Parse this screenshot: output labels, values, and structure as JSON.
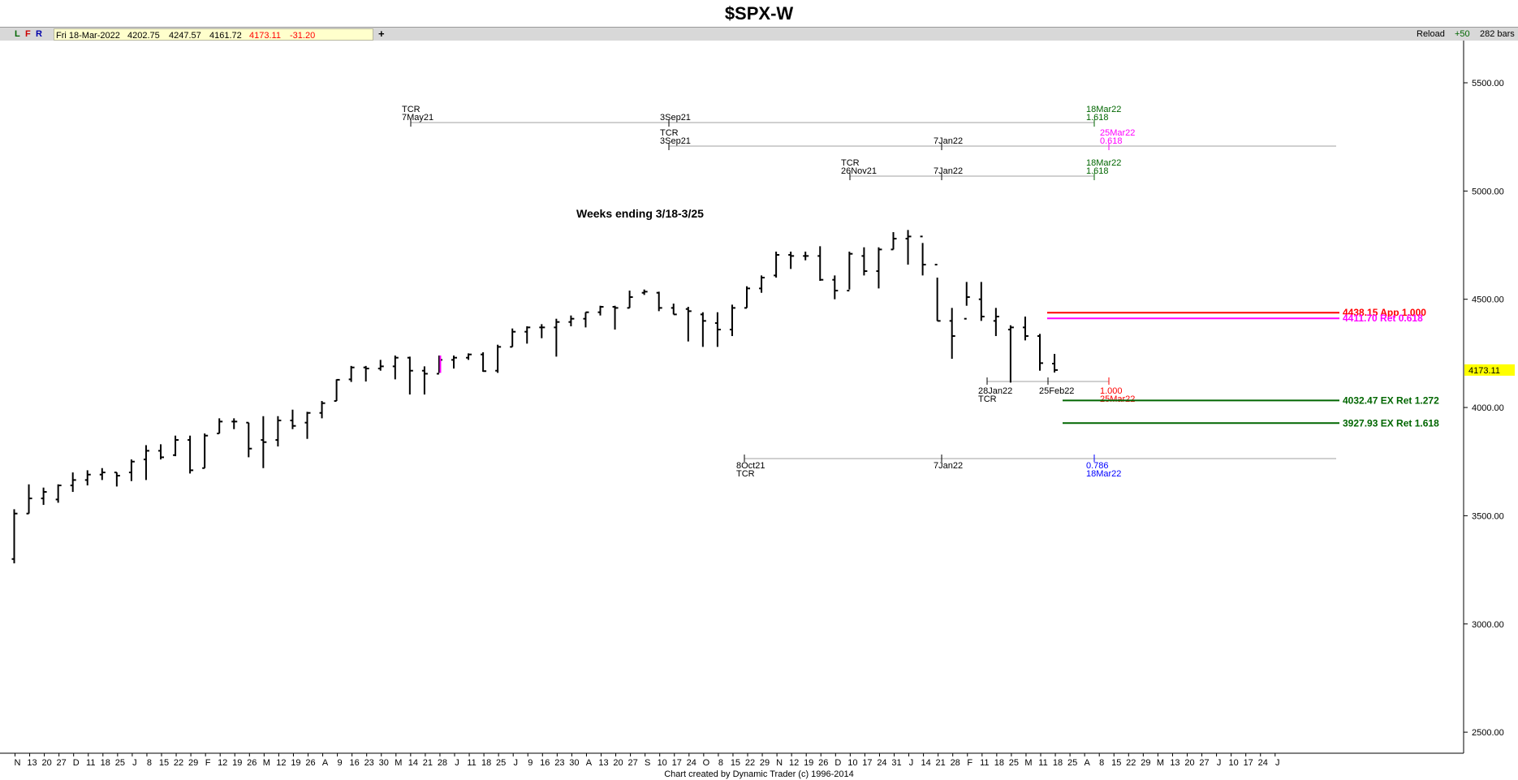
{
  "title": "$SPX-W",
  "toolbar": {
    "btn_l": "L",
    "btn_f": "F",
    "btn_r": "R",
    "date": "Fri 18-Mar-2022",
    "open": "4202.75",
    "high": "4247.57",
    "low": "4161.72",
    "close": "4173.11",
    "change": "-31.20",
    "add_label": "+",
    "reload_label": "Reload",
    "plus50": "+50",
    "bars": "282 bars"
  },
  "footer": "Chart created by Dynamic Trader  (c) 1996-2014",
  "colors": {
    "red": "#ff0000",
    "magenta": "#ff00ff",
    "green": "#006600",
    "blue": "#0000ff",
    "price_tag": "#ffff00"
  },
  "chart_data": {
    "type": "bar",
    "title": "$SPX-W",
    "ylim": [
      2450,
      5720
    ],
    "yticks": [
      "5500.00",
      "5000.00",
      "4500.00",
      "4000.00",
      "3500.00",
      "3000.00",
      "2500.00"
    ],
    "xtick_labels": [
      "N",
      "13",
      "20",
      "27",
      "D",
      "11",
      "18",
      "25",
      "J",
      "8",
      "15",
      "22",
      "29",
      "F",
      "12",
      "19",
      "26",
      "M",
      "12",
      "19",
      "26",
      "A",
      "9",
      "16",
      "23",
      "30",
      "M",
      "14",
      "21",
      "28",
      "J",
      "11",
      "18",
      "25",
      "J",
      "9",
      "16",
      "23",
      "30",
      "A",
      "13",
      "20",
      "27",
      "S",
      "10",
      "17",
      "24",
      "O",
      "8",
      "15",
      "22",
      "29",
      "N",
      "12",
      "19",
      "26",
      "D",
      "10",
      "17",
      "24",
      "31",
      "J",
      "14",
      "21",
      "28",
      "F",
      "11",
      "18",
      "25",
      "M",
      "11",
      "18",
      "25",
      "A",
      "8",
      "15",
      "22",
      "29",
      "M",
      "13",
      "20",
      "27",
      "J",
      "10",
      "17",
      "24",
      "J"
    ],
    "last_price": "4173.11",
    "weekly_bars": [
      {
        "o": 3300,
        "h": 3530,
        "l": 3280,
        "c": 3510
      },
      {
        "o": 3510,
        "h": 3645,
        "l": 3510,
        "c": 3580
      },
      {
        "o": 3580,
        "h": 3630,
        "l": 3550,
        "c": 3610
      },
      {
        "o": 3575,
        "h": 3645,
        "l": 3560,
        "c": 3640
      },
      {
        "o": 3640,
        "h": 3700,
        "l": 3610,
        "c": 3665
      },
      {
        "o": 3665,
        "h": 3710,
        "l": 3640,
        "c": 3690
      },
      {
        "o": 3690,
        "h": 3720,
        "l": 3665,
        "c": 3700
      },
      {
        "o": 3700,
        "h": 3700,
        "l": 3635,
        "c": 3685
      },
      {
        "o": 3700,
        "h": 3760,
        "l": 3660,
        "c": 3750
      },
      {
        "o": 3760,
        "h": 3826,
        "l": 3665,
        "c": 3800
      },
      {
        "o": 3800,
        "h": 3830,
        "l": 3760,
        "c": 3770
      },
      {
        "o": 3780,
        "h": 3870,
        "l": 3775,
        "c": 3850
      },
      {
        "o": 3850,
        "h": 3870,
        "l": 3695,
        "c": 3710
      },
      {
        "o": 3720,
        "h": 3880,
        "l": 3720,
        "c": 3870
      },
      {
        "o": 3880,
        "h": 3950,
        "l": 3880,
        "c": 3935
      },
      {
        "o": 3935,
        "h": 3950,
        "l": 3900,
        "c": 3935
      },
      {
        "o": 3930,
        "h": 3930,
        "l": 3770,
        "c": 3810
      },
      {
        "o": 3850,
        "h": 3960,
        "l": 3720,
        "c": 3840
      },
      {
        "o": 3850,
        "h": 3960,
        "l": 3820,
        "c": 3940
      },
      {
        "o": 3940,
        "h": 3990,
        "l": 3900,
        "c": 3915
      },
      {
        "o": 3930,
        "h": 3980,
        "l": 3855,
        "c": 3975
      },
      {
        "o": 3975,
        "h": 4030,
        "l": 3950,
        "c": 4020
      },
      {
        "o": 4030,
        "h": 4130,
        "l": 4030,
        "c": 4128
      },
      {
        "o": 4130,
        "h": 4192,
        "l": 4118,
        "c": 4185
      },
      {
        "o": 4185,
        "h": 4192,
        "l": 4120,
        "c": 4180
      },
      {
        "o": 4180,
        "h": 4220,
        "l": 4170,
        "c": 4190
      },
      {
        "o": 4190,
        "h": 4240,
        "l": 4130,
        "c": 4230
      },
      {
        "o": 4230,
        "h": 4235,
        "l": 4060,
        "c": 4170
      },
      {
        "o": 4170,
        "h": 4190,
        "l": 4060,
        "c": 4156
      },
      {
        "o": 4156,
        "h": 4240,
        "l": 4160,
        "c": 4220
      },
      {
        "o": 4220,
        "h": 4240,
        "l": 4180,
        "c": 4230
      },
      {
        "o": 4230,
        "h": 4250,
        "l": 4220,
        "c": 4245
      },
      {
        "o": 4245,
        "h": 4255,
        "l": 4165,
        "c": 4168
      },
      {
        "o": 4170,
        "h": 4290,
        "l": 4160,
        "c": 4280
      },
      {
        "o": 4280,
        "h": 4365,
        "l": 4280,
        "c": 4350
      },
      {
        "o": 4350,
        "h": 4375,
        "l": 4295,
        "c": 4370
      },
      {
        "o": 4370,
        "h": 4385,
        "l": 4320,
        "c": 4370
      },
      {
        "o": 4370,
        "h": 4410,
        "l": 4235,
        "c": 4395
      },
      {
        "o": 4395,
        "h": 4425,
        "l": 4375,
        "c": 4410
      },
      {
        "o": 4410,
        "h": 4440,
        "l": 4370,
        "c": 4440
      },
      {
        "o": 4440,
        "h": 4470,
        "l": 4425,
        "c": 4465
      },
      {
        "o": 4465,
        "h": 4470,
        "l": 4360,
        "c": 4460
      },
      {
        "o": 4460,
        "h": 4540,
        "l": 4460,
        "c": 4510
      },
      {
        "o": 4530,
        "h": 4545,
        "l": 4520,
        "c": 4535
      },
      {
        "o": 4530,
        "h": 4535,
        "l": 4445,
        "c": 4460
      },
      {
        "o": 4460,
        "h": 4480,
        "l": 4430,
        "c": 4430
      },
      {
        "o": 4455,
        "h": 4465,
        "l": 4305,
        "c": 4445
      },
      {
        "o": 4430,
        "h": 4440,
        "l": 4280,
        "c": 4400
      },
      {
        "o": 4390,
        "h": 4440,
        "l": 4280,
        "c": 4360
      },
      {
        "o": 4360,
        "h": 4475,
        "l": 4330,
        "c": 4460
      },
      {
        "o": 4460,
        "h": 4560,
        "l": 4460,
        "c": 4550
      },
      {
        "o": 4550,
        "h": 4610,
        "l": 4530,
        "c": 4600
      },
      {
        "o": 4610,
        "h": 4720,
        "l": 4600,
        "c": 4705
      },
      {
        "o": 4705,
        "h": 4720,
        "l": 4640,
        "c": 4700
      },
      {
        "o": 4700,
        "h": 4720,
        "l": 4680,
        "c": 4700
      },
      {
        "o": 4700,
        "h": 4745,
        "l": 4585,
        "c": 4590
      },
      {
        "o": 4590,
        "h": 4610,
        "l": 4500,
        "c": 4540
      },
      {
        "o": 4540,
        "h": 4720,
        "l": 4545,
        "c": 4710
      },
      {
        "o": 4700,
        "h": 4740,
        "l": 4610,
        "c": 4630
      },
      {
        "o": 4630,
        "h": 4740,
        "l": 4550,
        "c": 4730
      },
      {
        "o": 4730,
        "h": 4810,
        "l": 4730,
        "c": 4780
      },
      {
        "o": 4780,
        "h": 4820,
        "l": 4660,
        "c": 4790
      },
      {
        "o": 4790,
        "h": 4760,
        "l": 4610,
        "c": 4660
      },
      {
        "o": 4660,
        "h": 4600,
        "l": 4400,
        "c": 4400
      },
      {
        "o": 4400,
        "h": 4460,
        "l": 4225,
        "c": 4330
      },
      {
        "o": 4410,
        "h": 4580,
        "l": 4470,
        "c": 4510
      },
      {
        "o": 4500,
        "h": 4580,
        "l": 4400,
        "c": 4420
      },
      {
        "o": 4400,
        "h": 4460,
        "l": 4330,
        "c": 4420
      },
      {
        "o": 4360,
        "h": 4380,
        "l": 4115,
        "c": 4370
      },
      {
        "o": 4370,
        "h": 4420,
        "l": 4310,
        "c": 4330
      },
      {
        "o": 4330,
        "h": 4340,
        "l": 4170,
        "c": 4205
      },
      {
        "o": 4202.75,
        "h": 4247.57,
        "l": 4161.72,
        "c": 4173.11
      }
    ],
    "level_lines": [
      {
        "value": 4438.15,
        "label": "4438.15 App 1.000",
        "color": "red"
      },
      {
        "value": 4411.7,
        "label": "4411.70 Ret 0.618",
        "color": "magenta"
      },
      {
        "value": 4032.47,
        "label": "4032.47 EX Ret 1.272",
        "color": "green"
      },
      {
        "value": 3927.93,
        "label": "3927.93 EX Ret 1.618",
        "color": "green"
      }
    ],
    "annotations": {
      "weeks_text": "Weeks ending 3/18-3/25",
      "tcr": "TCR",
      "d_7may21": "7May21",
      "d_3sep21": "3Sep21",
      "d_18mar22": "18Mar22",
      "d_25mar22": "25Mar22",
      "d_7jan22": "7Jan22",
      "d_26nov21": "26Nov21",
      "d_28jan22": "28Jan22",
      "d_25feb22": "25Feb22",
      "d_8oct21": "8Oct21",
      "r_1618": "1.618",
      "r_0618": "0.618",
      "r_1000": "1.000",
      "r_0786": "0.786"
    }
  }
}
